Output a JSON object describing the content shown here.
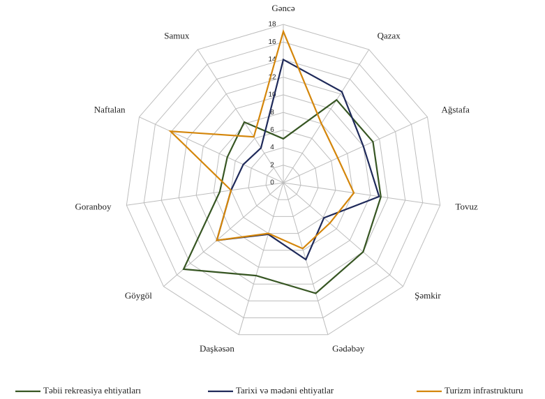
{
  "chart_data": {
    "type": "radar",
    "categories": [
      "Gəncə",
      "Qazax",
      "Ağstafa",
      "Tovuz",
      "Şəmkir",
      "Gədəbəy",
      "Daşkəsən",
      "Göygöl",
      "Goranboy",
      "Naftalan",
      "Samux"
    ],
    "series": [
      {
        "name": "Təbii rekreasiya ehtiyatları",
        "color": "#375623",
        "values": [
          5,
          11.2,
          11.2,
          11.2,
          12,
          13.1,
          11,
          15,
          7.3,
          7,
          8.2
        ]
      },
      {
        "name": "Tarixi və mədəni ehtiyatlar",
        "color": "#1f2a5a",
        "values": [
          14,
          12.3,
          10,
          11,
          6.1,
          9.1,
          6.1,
          10,
          6,
          5,
          4.7
        ]
      },
      {
        "name": "Turizm infrastrukturu",
        "color": "#d4860b",
        "values": [
          17.2,
          8,
          6.8,
          8.1,
          7,
          7.8,
          6,
          10,
          6,
          14.1,
          6.2
        ]
      }
    ],
    "ylim": [
      0,
      18
    ],
    "yticks": [
      0,
      2,
      4,
      6,
      8,
      10,
      12,
      14,
      16,
      18
    ],
    "grid": true,
    "legend": "bottom"
  }
}
